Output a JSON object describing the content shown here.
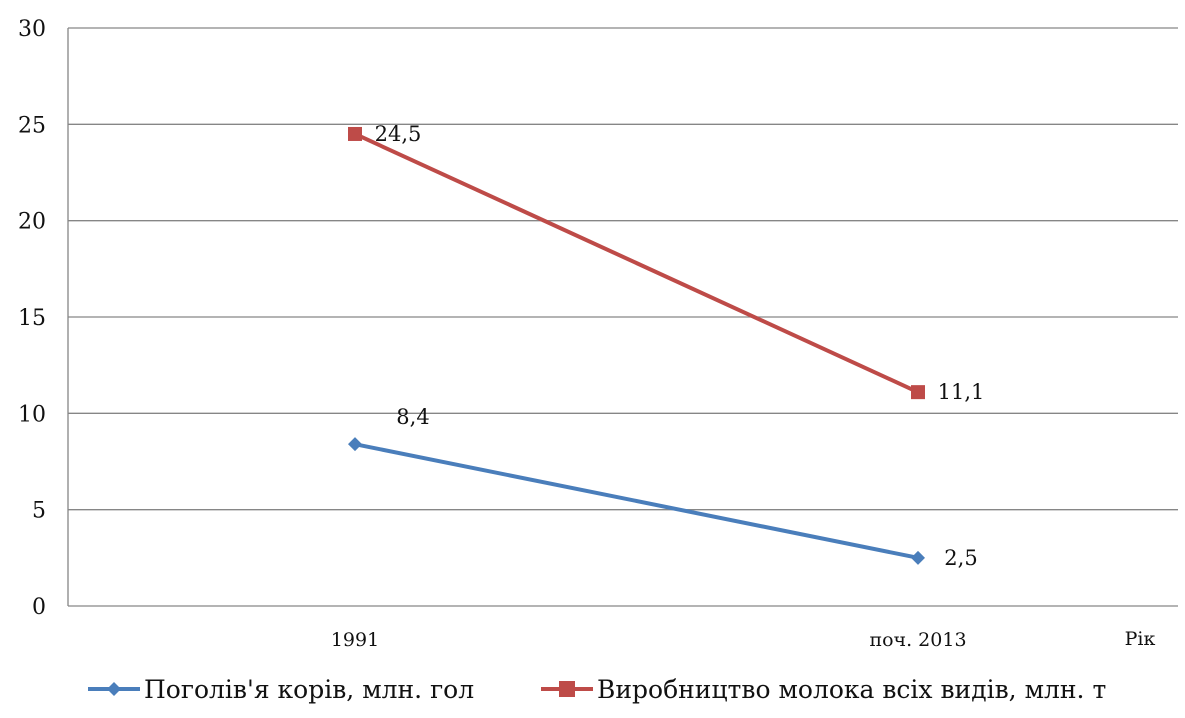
{
  "chart_data": {
    "type": "line",
    "categories": [
      "1991",
      "поч. 2013"
    ],
    "xlabel": "Рік",
    "ylabel": "",
    "ylim": [
      0,
      30
    ],
    "yticks": [
      "0",
      "5",
      "10",
      "15",
      "20",
      "25",
      "30"
    ],
    "grid": true,
    "legend_position": "bottom",
    "series": [
      {
        "name": "Поголів'я корів, млн. гол",
        "values": [
          8.4,
          2.5
        ],
        "labels": [
          "8,4",
          "2,5"
        ],
        "color": "#4a7ebb",
        "marker": "diamond"
      },
      {
        "name": "Виробництво молока всіх видів, млн. т",
        "values": [
          24.5,
          11.1
        ],
        "labels": [
          "24,5",
          "11,1"
        ],
        "color": "#be4b48",
        "marker": "square"
      }
    ]
  }
}
